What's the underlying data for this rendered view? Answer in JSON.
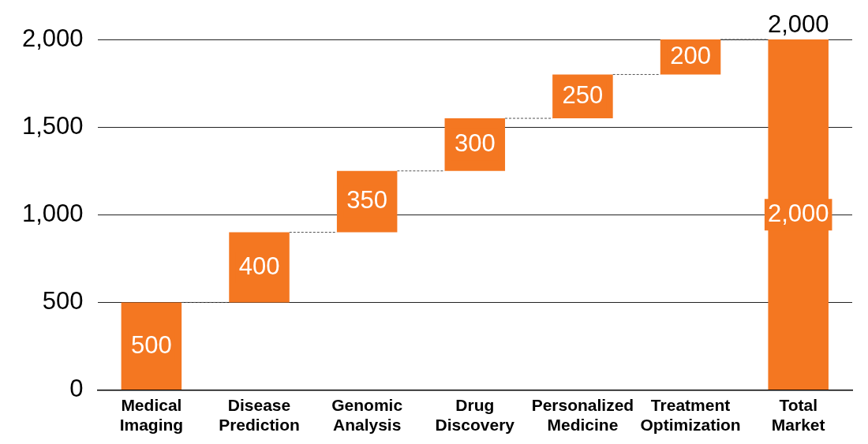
{
  "chart_data": {
    "type": "bar",
    "categories": [
      "Medical Imaging",
      "Disease Prediction",
      "Genomic Analysis",
      "Drug Discovery",
      "Personalized Medicine",
      "Treatment Optimization",
      "Total Market"
    ],
    "values": [
      500,
      400,
      350,
      300,
      250,
      200,
      2000
    ],
    "base": [
      0,
      500,
      900,
      1250,
      1550,
      1800,
      0
    ],
    "color": "#f47721",
    "value_labels": [
      "500",
      "400",
      "350",
      "300",
      "250",
      "200",
      "2,000"
    ],
    "annotations": [
      {
        "text": "2,000",
        "x": "Total Market",
        "y": 2000
      }
    ],
    "ylim": [
      0,
      2000
    ],
    "yticks": [
      {
        "value": 0,
        "label": "0"
      },
      {
        "value": 500,
        "label": "500"
      },
      {
        "value": 1000,
        "label": "1,000"
      },
      {
        "value": 1500,
        "label": "1,500"
      },
      {
        "value": 2000,
        "label": "2,000"
      }
    ],
    "grid": "y",
    "legend": false
  }
}
